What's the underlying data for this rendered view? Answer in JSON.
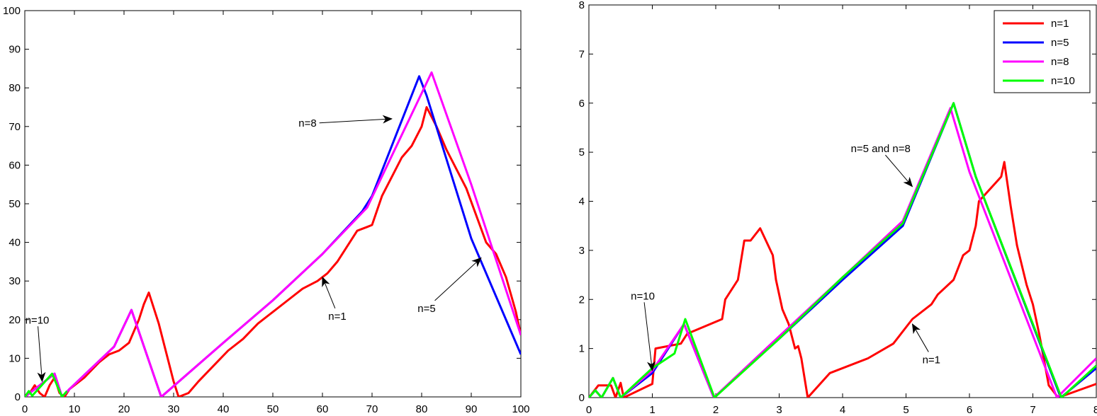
{
  "chart_data": [
    {
      "type": "line",
      "title": "",
      "xlabel": "",
      "ylabel": "",
      "xlim": [
        0,
        100
      ],
      "ylim": [
        0,
        100
      ],
      "x_ticks": [
        "0",
        "10",
        "20",
        "30",
        "40",
        "50",
        "60",
        "70",
        "80",
        "90",
        "100"
      ],
      "y_ticks": [
        "0",
        "10",
        "20",
        "30",
        "40",
        "50",
        "60",
        "70",
        "80",
        "90",
        "100"
      ],
      "grid": false,
      "legend_position": "none",
      "series": [
        {
          "name": "n=1",
          "color": "#ff0000",
          "points": [
            [
              0,
              0
            ],
            [
              1,
              1
            ],
            [
              2,
              3
            ],
            [
              3,
              1
            ],
            [
              4,
              0
            ],
            [
              5,
              3
            ],
            [
              6,
              5
            ],
            [
              7,
              1
            ],
            [
              8,
              0
            ],
            [
              9,
              2
            ],
            [
              12,
              5
            ],
            [
              15,
              9
            ],
            [
              17,
              11
            ],
            [
              19,
              12
            ],
            [
              21,
              14
            ],
            [
              22,
              17
            ],
            [
              23,
              20
            ],
            [
              24,
              24
            ],
            [
              25,
              27
            ],
            [
              26,
              23
            ],
            [
              27,
              19
            ],
            [
              28,
              14
            ],
            [
              29,
              9
            ],
            [
              30,
              4
            ],
            [
              31,
              0
            ],
            [
              33,
              1
            ],
            [
              35,
              4
            ],
            [
              38,
              8
            ],
            [
              41,
              12
            ],
            [
              44,
              15
            ],
            [
              47,
              19
            ],
            [
              50,
              22
            ],
            [
              53,
              25
            ],
            [
              56,
              28
            ],
            [
              59,
              30
            ],
            [
              61,
              32
            ],
            [
              63,
              35
            ],
            [
              65,
              39
            ],
            [
              67,
              43
            ],
            [
              69,
              44
            ],
            [
              70,
              44.5
            ],
            [
              72,
              52
            ],
            [
              74,
              57
            ],
            [
              76,
              62
            ],
            [
              78,
              65
            ],
            [
              80,
              70
            ],
            [
              81,
              75
            ],
            [
              83,
              70
            ],
            [
              85,
              64
            ],
            [
              87,
              59
            ],
            [
              89,
              54
            ],
            [
              91,
              47
            ],
            [
              93,
              40
            ],
            [
              95,
              37
            ],
            [
              97,
              31
            ],
            [
              99,
              22
            ],
            [
              100,
              16
            ]
          ]
        },
        {
          "name": "n=5",
          "color": "#0000ff",
          "points": [
            [
              0,
              0
            ],
            [
              2,
              2
            ],
            [
              4,
              4
            ],
            [
              6,
              6
            ],
            [
              7.5,
              0
            ],
            [
              9,
              2
            ],
            [
              18,
              13
            ],
            [
              21.5,
              22.5
            ],
            [
              27.5,
              0
            ],
            [
              40,
              14
            ],
            [
              50,
              25
            ],
            [
              60,
              37
            ],
            [
              68,
              48
            ],
            [
              70,
              52
            ],
            [
              79.5,
              83
            ],
            [
              81,
              78
            ],
            [
              90,
              41
            ],
            [
              100,
              11
            ]
          ]
        },
        {
          "name": "n=8",
          "color": "#ff00ff",
          "points": [
            [
              0,
              0
            ],
            [
              2,
              2
            ],
            [
              4,
              4
            ],
            [
              6,
              6
            ],
            [
              7.5,
              0
            ],
            [
              9,
              2
            ],
            [
              18,
              13
            ],
            [
              21.5,
              22.5
            ],
            [
              27.5,
              0
            ],
            [
              40,
              14
            ],
            [
              50,
              25
            ],
            [
              60,
              37
            ],
            [
              69,
              49
            ],
            [
              82,
              84
            ],
            [
              90,
              55
            ],
            [
              100,
              16
            ]
          ]
        },
        {
          "name": "n=10",
          "color": "#00ff00",
          "points": [
            [
              0,
              0
            ],
            [
              0.8,
              1.5
            ],
            [
              1.5,
              0.3
            ],
            [
              5.5,
              6
            ],
            [
              7.5,
              0
            ],
            [
              8.5,
              1.5
            ]
          ]
        }
      ],
      "annotations": [
        {
          "text": "n=10",
          "text_at": [
            2.5,
            19
          ],
          "arrow_to": [
            3.5,
            4
          ]
        },
        {
          "text": "n=8",
          "text_at": [
            57,
            70
          ],
          "arrow_to": [
            74,
            72
          ]
        },
        {
          "text": "n=1",
          "text_at": [
            63,
            20
          ],
          "arrow_to": [
            60,
            31
          ]
        },
        {
          "text": "n=5",
          "text_at": [
            81,
            22
          ],
          "arrow_to": [
            92,
            36
          ]
        }
      ]
    },
    {
      "type": "line",
      "title": "",
      "xlabel": "",
      "ylabel": "",
      "xlim": [
        0,
        8
      ],
      "ylim": [
        0,
        8
      ],
      "x_ticks": [
        "0",
        "1",
        "2",
        "3",
        "4",
        "5",
        "6",
        "7",
        "8"
      ],
      "y_ticks": [
        "0",
        "1",
        "2",
        "3",
        "4",
        "5",
        "6",
        "7",
        "8"
      ],
      "grid": false,
      "legend_position": "upper right",
      "legend": [
        "n=1",
        "n=5",
        "n=8",
        "n=10"
      ],
      "series": [
        {
          "name": "n=1",
          "color": "#ff0000",
          "points": [
            [
              0,
              0
            ],
            [
              0.15,
              0.25
            ],
            [
              0.35,
              0.25
            ],
            [
              0.42,
              0
            ],
            [
              0.5,
              0.3
            ],
            [
              0.55,
              0
            ],
            [
              1,
              0.28
            ],
            [
              1.05,
              1.0
            ],
            [
              1.45,
              1.1
            ],
            [
              1.55,
              1.3
            ],
            [
              2.1,
              1.6
            ],
            [
              2.15,
              2.0
            ],
            [
              2.35,
              2.4
            ],
            [
              2.45,
              3.2
            ],
            [
              2.55,
              3.2
            ],
            [
              2.7,
              3.45
            ],
            [
              2.9,
              2.9
            ],
            [
              2.95,
              2.4
            ],
            [
              3.05,
              1.8
            ],
            [
              3.15,
              1.5
            ],
            [
              3.25,
              1.0
            ],
            [
              3.3,
              1.05
            ],
            [
              3.35,
              0.8
            ],
            [
              3.45,
              0
            ],
            [
              3.8,
              0.5
            ],
            [
              4.4,
              0.8
            ],
            [
              4.8,
              1.1
            ],
            [
              5.1,
              1.6
            ],
            [
              5.4,
              1.9
            ],
            [
              5.5,
              2.1
            ],
            [
              5.75,
              2.4
            ],
            [
              5.9,
              2.9
            ],
            [
              6.0,
              3.0
            ],
            [
              6.1,
              3.5
            ],
            [
              6.15,
              4.0
            ],
            [
              6.5,
              4.5
            ],
            [
              6.55,
              4.8
            ],
            [
              6.65,
              3.9
            ],
            [
              6.75,
              3.1
            ],
            [
              6.9,
              2.3
            ],
            [
              7.0,
              1.9
            ],
            [
              7.1,
              1.3
            ],
            [
              7.2,
              0.6
            ],
            [
              7.25,
              0.25
            ],
            [
              7.4,
              0
            ],
            [
              8,
              0.28
            ]
          ]
        },
        {
          "name": "n=5",
          "color": "#0000ff",
          "points": [
            [
              0,
              0
            ],
            [
              0.1,
              0.15
            ],
            [
              0.2,
              0
            ],
            [
              0.38,
              0.4
            ],
            [
              0.5,
              0
            ],
            [
              1.0,
              0.5
            ],
            [
              1.5,
              1.5
            ],
            [
              1.97,
              0
            ],
            [
              3,
              1.2
            ],
            [
              4,
              2.4
            ],
            [
              4.95,
              3.5
            ],
            [
              5.75,
              6.0
            ],
            [
              6.1,
              4.5
            ],
            [
              7.44,
              0
            ],
            [
              8,
              0.6
            ]
          ]
        },
        {
          "name": "n=8",
          "color": "#ff00ff",
          "points": [
            [
              0,
              0
            ],
            [
              0.1,
              0.15
            ],
            [
              0.2,
              0
            ],
            [
              0.38,
              0.4
            ],
            [
              0.5,
              0
            ],
            [
              1.0,
              0.55
            ],
            [
              1.5,
              1.5
            ],
            [
              1.97,
              0
            ],
            [
              3,
              1.25
            ],
            [
              4,
              2.45
            ],
            [
              4.95,
              3.6
            ],
            [
              5.7,
              5.9
            ],
            [
              6.0,
              4.6
            ],
            [
              7.38,
              0
            ],
            [
              8,
              0.8
            ]
          ]
        },
        {
          "name": "n=10",
          "color": "#00ff00",
          "points": [
            [
              0,
              0
            ],
            [
              0.1,
              0.15
            ],
            [
              0.2,
              0
            ],
            [
              0.38,
              0.4
            ],
            [
              0.5,
              0
            ],
            [
              1.0,
              0.6
            ],
            [
              1.35,
              0.9
            ],
            [
              1.52,
              1.6
            ],
            [
              1.98,
              0
            ],
            [
              3,
              1.2
            ],
            [
              4,
              2.45
            ],
            [
              4.95,
              3.55
            ],
            [
              5.75,
              6.0
            ],
            [
              6.1,
              4.5
            ],
            [
              7.45,
              0
            ],
            [
              8,
              0.65
            ]
          ]
        }
      ],
      "annotations": [
        {
          "text": "n=10",
          "text_at": [
            0.85,
            2.0
          ],
          "arrow_to": [
            1.0,
            0.55
          ]
        },
        {
          "text": "n=5 and n=8",
          "text_at": [
            4.6,
            5.0
          ],
          "arrow_to": [
            5.1,
            4.3
          ]
        },
        {
          "text": "n=1",
          "text_at": [
            5.4,
            0.7
          ],
          "arrow_to": [
            5.1,
            1.5
          ]
        }
      ]
    }
  ],
  "legend": {
    "items": [
      {
        "label": "n=1",
        "color": "#ff0000"
      },
      {
        "label": "n=5",
        "color": "#0000ff"
      },
      {
        "label": "n=8",
        "color": "#ff00ff"
      },
      {
        "label": "n=10",
        "color": "#00ff00"
      }
    ]
  }
}
